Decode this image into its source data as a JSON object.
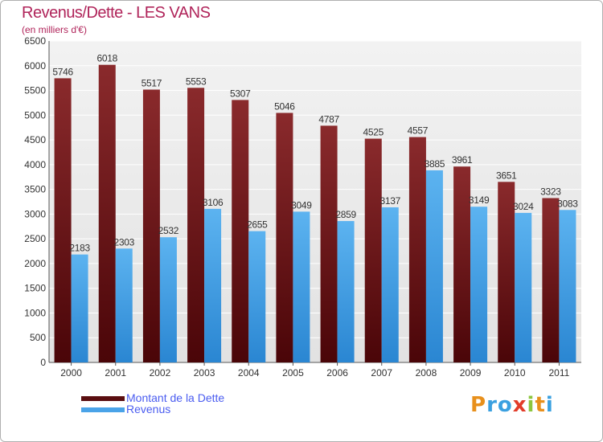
{
  "chart_data": {
    "type": "bar",
    "title": "Revenus/Dette - LES VANS",
    "subtitle": "(en milliers d'€)",
    "categories": [
      "2000",
      "2001",
      "2002",
      "2003",
      "2004",
      "2005",
      "2006",
      "2007",
      "2008",
      "2009",
      "2010",
      "2011"
    ],
    "series": [
      {
        "name": "Montant de la Dette",
        "color": "#7a1416",
        "values": [
          5746,
          6018,
          5517,
          5553,
          5307,
          5046,
          4787,
          4525,
          4557,
          3961,
          3651,
          3323
        ]
      },
      {
        "name": "Revenus",
        "color": "#4aa3e8",
        "values": [
          2183,
          2303,
          2532,
          3106,
          2655,
          3049,
          2859,
          3137,
          3885,
          3149,
          3024,
          3083
        ]
      }
    ],
    "ylim": [
      0,
      6500
    ],
    "yticks": [
      0,
      500,
      1000,
      1500,
      2000,
      2500,
      3000,
      3500,
      4000,
      4500,
      5000,
      5500,
      6000,
      6500
    ],
    "grid": true,
    "legend": "bottom-left"
  },
  "logo": {
    "letters": [
      {
        "ch": "P",
        "color": "#e8901c"
      },
      {
        "ch": "r",
        "color": "#3aa0e0"
      },
      {
        "ch": "o",
        "color": "#3aa0e0"
      },
      {
        "ch": "x",
        "color": "#e23c2a"
      },
      {
        "ch": "i",
        "color": "#8cc63e"
      },
      {
        "ch": "t",
        "color": "#e8901c"
      },
      {
        "ch": "i",
        "color": "#3aa0e0"
      }
    ]
  }
}
